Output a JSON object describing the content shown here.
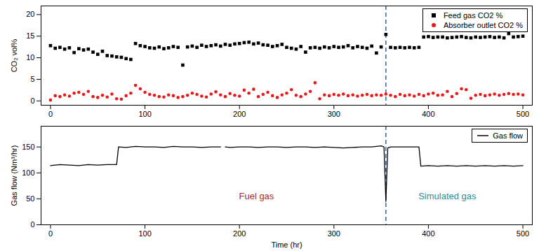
{
  "chart_data": [
    {
      "type": "scatter",
      "ylabel": "CO₂ vol%",
      "x": [
        0,
        5,
        10,
        15,
        20,
        25,
        30,
        35,
        40,
        45,
        50,
        55,
        60,
        65,
        70,
        75,
        80,
        85,
        90,
        95,
        100,
        105,
        110,
        115,
        120,
        125,
        130,
        135,
        140,
        145,
        150,
        155,
        160,
        165,
        170,
        175,
        180,
        185,
        190,
        195,
        200,
        205,
        210,
        215,
        220,
        225,
        230,
        235,
        240,
        245,
        250,
        255,
        260,
        265,
        270,
        275,
        280,
        285,
        290,
        295,
        300,
        305,
        310,
        315,
        320,
        325,
        330,
        335,
        340,
        345,
        350,
        355,
        360,
        365,
        370,
        375,
        380,
        385,
        390,
        395,
        400,
        405,
        410,
        415,
        420,
        425,
        430,
        435,
        440,
        445,
        450,
        455,
        460,
        465,
        470,
        475,
        480,
        485,
        490,
        495,
        500
      ],
      "xlim": [
        -10,
        510
      ],
      "xticks": [
        0,
        100,
        200,
        300,
        400,
        500
      ],
      "ylim": [
        -1,
        22
      ],
      "yticks": [
        0,
        5,
        10,
        15,
        20
      ],
      "grid": false,
      "legend": "top-right",
      "series": [
        {
          "name": "Feed gas CO2 %",
          "color": "#000000",
          "marker": "square",
          "values": [
            12.8,
            12.2,
            12.4,
            12.0,
            12.3,
            11.2,
            12.1,
            11.8,
            12.0,
            11.3,
            10.8,
            11.5,
            10.5,
            10.4,
            10.2,
            10.1,
            9.8,
            9.6,
            13.3,
            12.8,
            12.6,
            12.3,
            12.2,
            12.5,
            12.1,
            12.3,
            12.6,
            12.4,
            8.3,
            12.5,
            12.7,
            12.4,
            12.9,
            12.6,
            12.8,
            13.0,
            12.7,
            13.1,
            12.9,
            13.2,
            13.3,
            13.5,
            13.6,
            13.2,
            13.4,
            13.0,
            12.9,
            12.6,
            12.8,
            13.1,
            12.4,
            12.2,
            12.0,
            12.6,
            11.3,
            12.3,
            12.4,
            12.2,
            12.5,
            12.3,
            12.6,
            12.4,
            12.5,
            12.8,
            12.3,
            12.6,
            12.4,
            12.2,
            12.7,
            11.1,
            12.5,
            15.4,
            12.4,
            12.3,
            12.4,
            12.3,
            12.4,
            12.3,
            12.4,
            14.8,
            14.9,
            14.7,
            14.8,
            14.8,
            14.6,
            14.7,
            14.8,
            14.9,
            14.7,
            14.6,
            14.8,
            14.7,
            14.8,
            14.9,
            14.7,
            14.8,
            14.6,
            15.6,
            14.8,
            14.9,
            15.0
          ]
        },
        {
          "name": "Absorber outlet CO2 %",
          "color": "#e8191b",
          "marker": "circle",
          "values": [
            0.2,
            1.2,
            1.0,
            1.4,
            1.1,
            1.8,
            2.0,
            1.5,
            2.2,
            1.0,
            0.8,
            1.3,
            0.9,
            1.6,
            0.5,
            0.4,
            1.2,
            1.8,
            3.6,
            2.8,
            2.0,
            1.5,
            1.3,
            1.0,
            0.9,
            1.4,
            1.2,
            0.8,
            1.0,
            1.3,
            1.8,
            1.5,
            1.1,
            0.9,
            1.6,
            2.1,
            1.4,
            1.0,
            1.7,
            1.3,
            1.1,
            2.5,
            1.8,
            2.7,
            1.0,
            1.5,
            2.0,
            1.2,
            0.8,
            1.4,
            1.8,
            2.6,
            1.3,
            1.0,
            1.6,
            2.2,
            4.2,
            0.5,
            1.4,
            1.2,
            1.5,
            1.3,
            1.6,
            1.2,
            1.4,
            1.1,
            1.3,
            1.5,
            1.2,
            1.4,
            1.3,
            1.6,
            1.3,
            1.0,
            1.5,
            1.2,
            1.4,
            1.1,
            1.5,
            1.2,
            1.6,
            1.8,
            1.3,
            1.4,
            2.2,
            1.0,
            1.7,
            2.8,
            2.6,
            0.6,
            1.3,
            1.5,
            1.2,
            1.4,
            1.6,
            1.3,
            1.5,
            1.7,
            1.5,
            1.6,
            1.4
          ]
        }
      ],
      "reference_lines": [
        {
          "x": 355,
          "color": "#3a63a8",
          "line_style": "dashed"
        }
      ]
    },
    {
      "type": "line",
      "xlabel": "Time (hr)",
      "ylabel": "Gas flow (Nm³/hr)",
      "x": [
        0,
        10,
        20,
        30,
        40,
        50,
        60,
        70,
        72,
        80,
        90,
        100,
        110,
        120,
        130,
        140,
        150,
        160,
        170,
        180,
        181,
        185,
        190,
        200,
        210,
        220,
        230,
        240,
        250,
        260,
        270,
        280,
        290,
        300,
        310,
        320,
        330,
        340,
        350,
        353,
        355,
        357,
        360,
        370,
        380,
        390,
        392,
        400,
        410,
        420,
        430,
        440,
        450,
        460,
        470,
        480,
        490,
        500
      ],
      "xlim": [
        -10,
        510
      ],
      "xticks": [
        0,
        100,
        200,
        300,
        400,
        500
      ],
      "ylim": [
        0,
        190
      ],
      "yticks": [
        0,
        50,
        100,
        150
      ],
      "grid": false,
      "legend": "top-right",
      "series": [
        {
          "name": "Gas flow",
          "color": "#000000",
          "line_style": "solid",
          "values": [
            114,
            116,
            115,
            114,
            116,
            115,
            116,
            116,
            150,
            149,
            151,
            150,
            150,
            149,
            151,
            150,
            150,
            149,
            150,
            150,
            null,
            150,
            149,
            150,
            150,
            149,
            150,
            150,
            149,
            150,
            150,
            149,
            150,
            149,
            148,
            149,
            150,
            150,
            152,
            150,
            45,
            148,
            150,
            150,
            150,
            150,
            113,
            114,
            113,
            114,
            113,
            114,
            113,
            114,
            113,
            114,
            113,
            114
          ]
        }
      ],
      "annotations": [
        {
          "text": "Fuel gas",
          "x": 218,
          "y": 55,
          "color": "#a0302a"
        },
        {
          "text": "Simulated gas",
          "x": 420,
          "y": 55,
          "color": "#2e8b9a"
        }
      ],
      "reference_lines": [
        {
          "x": 355,
          "color": "#3a63a8",
          "line_style": "dashed"
        }
      ]
    }
  ]
}
